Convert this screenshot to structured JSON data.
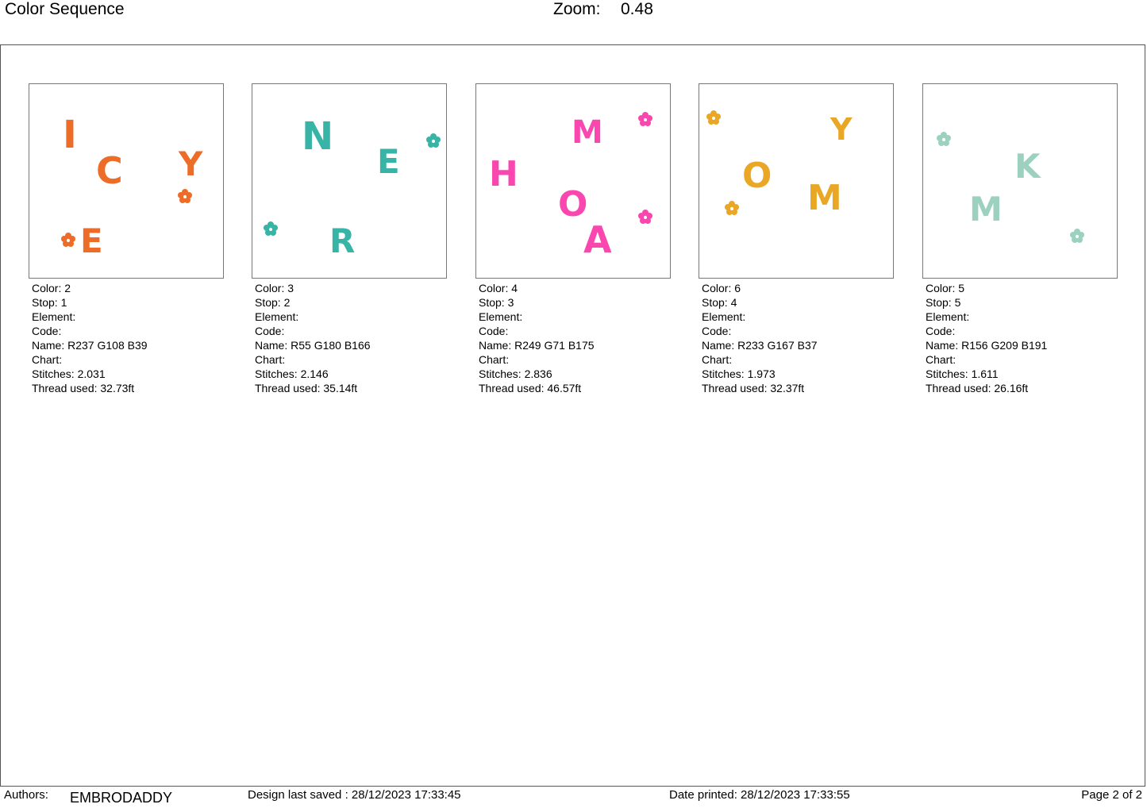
{
  "header": {
    "title": "Color Sequence",
    "zoom_label": "Zoom:",
    "zoom_value": "0.48"
  },
  "cards": [
    {
      "color": "#ed6c27",
      "letters": [
        "I",
        "C",
        "Y",
        "E"
      ],
      "labels": {
        "color": "Color: 2",
        "stop": "Stop: 1",
        "element": "Element:",
        "code": "Code:",
        "name": "Name: R237 G108 B39",
        "chart": "Chart:",
        "stitches": "Stitches: 2.031",
        "thread": "Thread used: 32.73ft"
      }
    },
    {
      "color": "#37b4a6",
      "letters": [
        "N",
        "E",
        "R"
      ],
      "labels": {
        "color": "Color: 3",
        "stop": "Stop: 2",
        "element": "Element:",
        "code": "Code:",
        "name": "Name: R55 G180 B166",
        "chart": "Chart:",
        "stitches": "Stitches: 2.146",
        "thread": "Thread used: 35.14ft"
      }
    },
    {
      "color": "#f947af",
      "letters": [
        "M",
        "H",
        "O",
        "A"
      ],
      "labels": {
        "color": "Color: 4",
        "stop": "Stop: 3",
        "element": "Element:",
        "code": "Code:",
        "name": "Name: R249 G71 B175",
        "chart": "Chart:",
        "stitches": "Stitches: 2.836",
        "thread": "Thread used: 46.57ft"
      }
    },
    {
      "color": "#e9a725",
      "letters": [
        "Y",
        "O",
        "M"
      ],
      "labels": {
        "color": "Color: 6",
        "stop": "Stop: 4",
        "element": "Element:",
        "code": "Code:",
        "name": "Name: R233 G167 B37",
        "chart": "Chart:",
        "stitches": "Stitches: 1.973",
        "thread": "Thread used: 32.37ft"
      }
    },
    {
      "color": "#9cd1bf",
      "letters": [
        "K",
        "M"
      ],
      "labels": {
        "color": "Color: 5",
        "stop": "Stop: 5",
        "element": "Element:",
        "code": "Code:",
        "name": "Name: R156 G209 B191",
        "chart": "Chart:",
        "stitches": "Stitches: 1.611",
        "thread": "Thread used: 26.16ft"
      }
    }
  ],
  "footer": {
    "authors_label": "Authors:",
    "author_name": "EMBRODADDY",
    "design_saved": "Design last saved : 28/12/2023 17:33:45",
    "date_printed": "Date printed: 28/12/2023 17:33:55",
    "page": "Page 2 of 2"
  }
}
